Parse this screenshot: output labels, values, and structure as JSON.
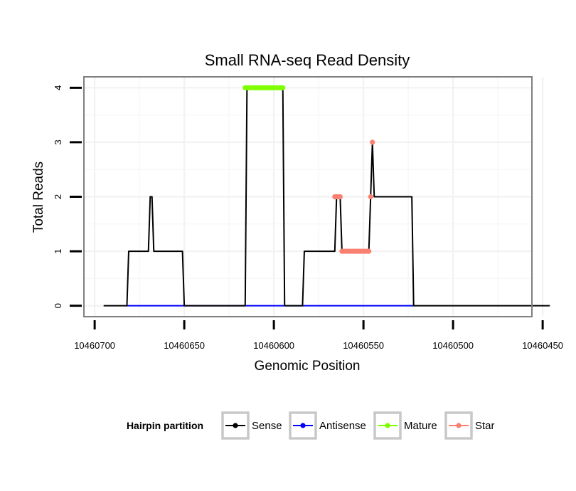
{
  "chart_data": {
    "type": "line",
    "title": "Small RNA-seq Read Density",
    "xlabel": "Genomic Position",
    "ylabel": "Total Reads",
    "x_reversed": true,
    "xlim": [
      10460706,
      10460456
    ],
    "ylim": [
      -0.2,
      4.2
    ],
    "x_ticks": [
      10460700,
      10460650,
      10460600,
      10460550,
      10460500,
      10460450
    ],
    "x_tick_labels": [
      "10460700",
      "10460650",
      "10460600",
      "10460550",
      "10460500",
      "10460450"
    ],
    "y_ticks": [
      0,
      1,
      2,
      3,
      4
    ],
    "y_tick_labels": [
      "0",
      "1",
      "2",
      "3",
      "4"
    ],
    "grid": true,
    "legend": {
      "title": "Hairpin partition",
      "position": "bottom",
      "items": [
        {
          "label": "Sense",
          "color": "#000000"
        },
        {
          "label": "Antisense",
          "color": "#0000ff"
        },
        {
          "label": "Mature",
          "color": "#7fff00"
        },
        {
          "label": "Star",
          "color": "#fa8072"
        }
      ]
    },
    "series": [
      {
        "name": "Sense",
        "color": "#000000",
        "style": "line",
        "x": [
          10460695,
          10460682,
          10460681,
          10460670,
          10460669,
          10460668,
          10460667,
          10460651,
          10460650,
          10460616,
          10460615,
          10460595,
          10460594,
          10460584,
          10460583,
          10460566,
          10460565,
          10460563,
          10460562,
          10460547,
          10460546,
          10460545,
          10460544,
          10460523,
          10460522,
          10460446
        ],
        "y": [
          0,
          0,
          1,
          1,
          2,
          2,
          1,
          1,
          0,
          0,
          4,
          4,
          0,
          0,
          1,
          1,
          2,
          2,
          1,
          1,
          2,
          3,
          2,
          2,
          0,
          0
        ]
      },
      {
        "name": "Antisense",
        "color": "#0000ff",
        "style": "line",
        "x": [
          10460682,
          10460522
        ],
        "y": [
          0,
          0
        ]
      },
      {
        "name": "Mature",
        "color": "#7fff00",
        "style": "points",
        "x": [
          10460616,
          10460615,
          10460614,
          10460613,
          10460612,
          10460611,
          10460610,
          10460609,
          10460608,
          10460607,
          10460606,
          10460605,
          10460604,
          10460603,
          10460602,
          10460601,
          10460600,
          10460599,
          10460598,
          10460597,
          10460596,
          10460595
        ],
        "y": [
          4,
          4,
          4,
          4,
          4,
          4,
          4,
          4,
          4,
          4,
          4,
          4,
          4,
          4,
          4,
          4,
          4,
          4,
          4,
          4,
          4,
          4
        ]
      },
      {
        "name": "Star",
        "color": "#fa8072",
        "style": "points",
        "x": [
          10460566,
          10460565,
          10460564,
          10460563,
          10460562,
          10460561,
          10460560,
          10460559,
          10460558,
          10460557,
          10460556,
          10460555,
          10460554,
          10460553,
          10460552,
          10460551,
          10460550,
          10460549,
          10460548,
          10460547,
          10460546,
          10460545
        ],
        "y": [
          2,
          2,
          2,
          2,
          1,
          1,
          1,
          1,
          1,
          1,
          1,
          1,
          1,
          1,
          1,
          1,
          1,
          1,
          1,
          1,
          2,
          3
        ]
      }
    ]
  }
}
